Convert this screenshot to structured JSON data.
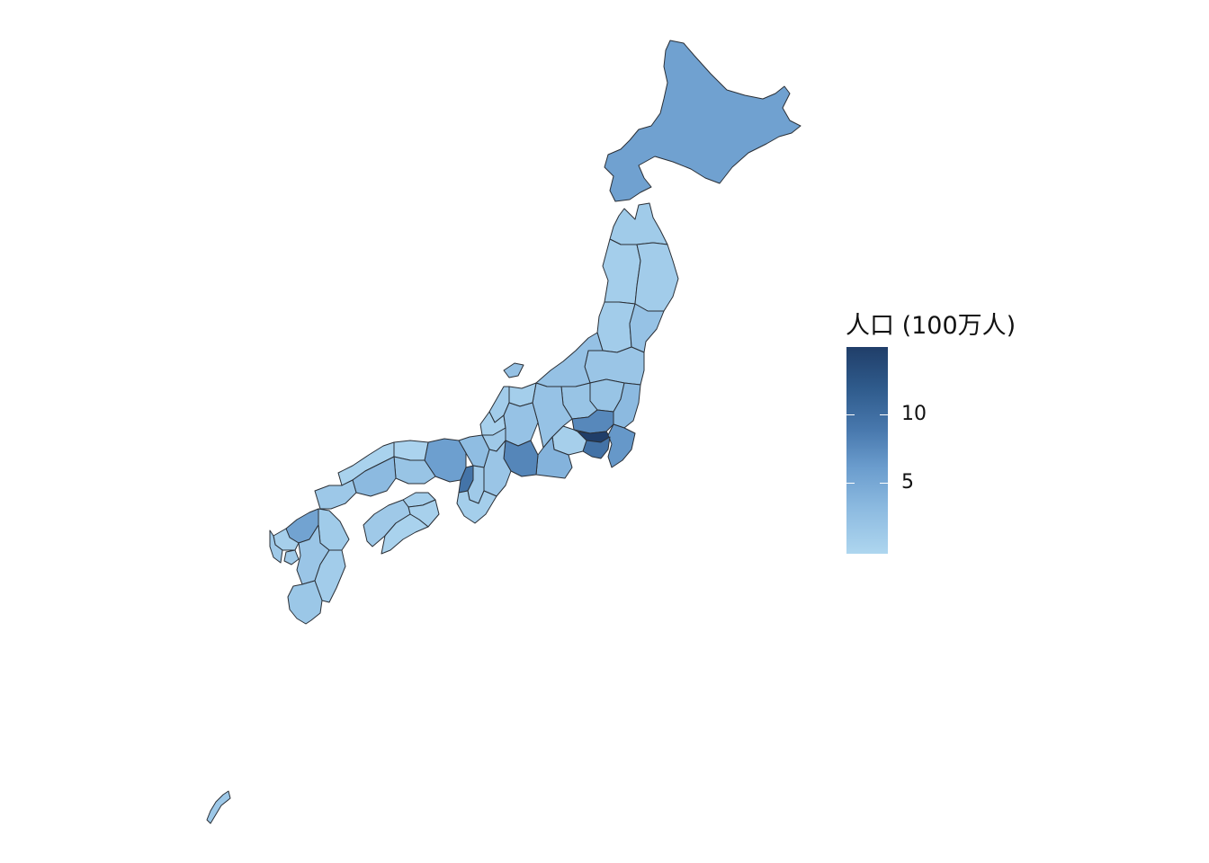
{
  "legend": {
    "title": "人口 (100万人)",
    "ticks": [
      {
        "value": 10,
        "label": "10"
      },
      {
        "value": 5,
        "label": "5"
      }
    ],
    "range": [
      0.6,
      14.0
    ]
  },
  "colors": {
    "low": "#aed6ef",
    "high": "#203e69",
    "border": "#2a2f36"
  },
  "regions": [
    {
      "id": "hokkaido",
      "level": 0.38
    },
    {
      "id": "aomori",
      "level": 0.08
    },
    {
      "id": "iwate",
      "level": 0.07
    },
    {
      "id": "akita",
      "level": 0.06
    },
    {
      "id": "miyagi",
      "level": 0.14
    },
    {
      "id": "yamagata",
      "level": 0.07
    },
    {
      "id": "fukushima",
      "level": 0.12
    },
    {
      "id": "ibaraki",
      "level": 0.2
    },
    {
      "id": "tochigi",
      "level": 0.13
    },
    {
      "id": "gunma",
      "level": 0.13
    },
    {
      "id": "saitama",
      "level": 0.52
    },
    {
      "id": "chiba",
      "level": 0.44
    },
    {
      "id": "tokyo",
      "level": 1.0
    },
    {
      "id": "kanagawa",
      "level": 0.64
    },
    {
      "id": "niigata",
      "level": 0.15
    },
    {
      "id": "toyama",
      "level": 0.06
    },
    {
      "id": "ishikawa",
      "level": 0.07
    },
    {
      "id": "fukui",
      "level": 0.04
    },
    {
      "id": "yamanashi",
      "level": 0.05
    },
    {
      "id": "nagano",
      "level": 0.14
    },
    {
      "id": "gifu",
      "level": 0.14
    },
    {
      "id": "shizuoka",
      "level": 0.25
    },
    {
      "id": "aichi",
      "level": 0.53
    },
    {
      "id": "mie",
      "level": 0.12
    },
    {
      "id": "shiga",
      "level": 0.09
    },
    {
      "id": "kyoto",
      "level": 0.18
    },
    {
      "id": "osaka",
      "level": 0.63
    },
    {
      "id": "hyogo",
      "level": 0.4
    },
    {
      "id": "nara",
      "level": 0.09
    },
    {
      "id": "wakayama",
      "level": 0.06
    },
    {
      "id": "tottori",
      "level": 0.02
    },
    {
      "id": "shimane",
      "level": 0.03
    },
    {
      "id": "okayama",
      "level": 0.13
    },
    {
      "id": "hiroshima",
      "level": 0.2
    },
    {
      "id": "yamaguchi",
      "level": 0.1
    },
    {
      "id": "tokushima",
      "level": 0.04
    },
    {
      "id": "kagawa",
      "level": 0.06
    },
    {
      "id": "ehime",
      "level": 0.09
    },
    {
      "id": "kochi",
      "level": 0.03
    },
    {
      "id": "fukuoka",
      "level": 0.37
    },
    {
      "id": "saga",
      "level": 0.05
    },
    {
      "id": "nagasaki",
      "level": 0.09
    },
    {
      "id": "kumamoto",
      "level": 0.12
    },
    {
      "id": "oita",
      "level": 0.08
    },
    {
      "id": "miyazaki",
      "level": 0.07
    },
    {
      "id": "kagoshima",
      "level": 0.11
    },
    {
      "id": "okinawa",
      "level": 0.1
    }
  ]
}
